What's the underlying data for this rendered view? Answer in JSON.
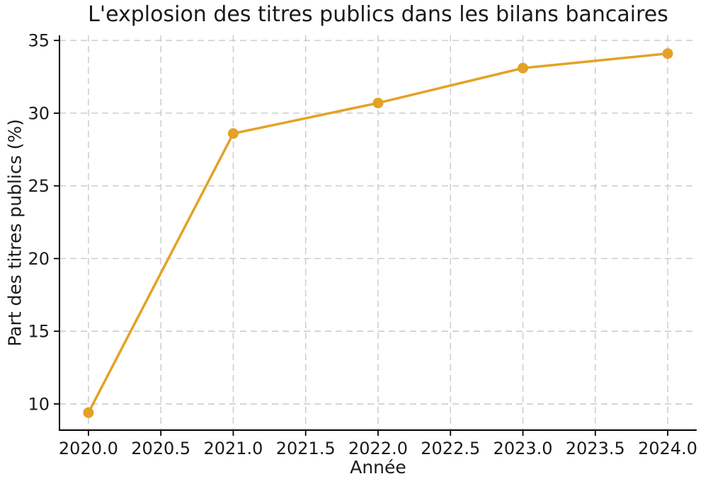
{
  "chart_data": {
    "type": "line",
    "title": "L'explosion des titres publics dans les bilans bancaires",
    "xlabel": "Année",
    "ylabel": "Part des titres publics (%)",
    "series": [
      {
        "name": "Part des titres publics",
        "x": [
          2020,
          2021,
          2022,
          2023,
          2024
        ],
        "values": [
          9.4,
          28.6,
          30.7,
          33.1,
          34.1
        ]
      }
    ],
    "xticks": [
      2020.0,
      2020.5,
      2021.0,
      2021.5,
      2022.0,
      2022.5,
      2023.0,
      2023.5,
      2024.0
    ],
    "xtick_labels": [
      "2020.0",
      "2020.5",
      "2021.0",
      "2021.5",
      "2022.0",
      "2022.5",
      "2023.0",
      "2023.5",
      "2024.0"
    ],
    "yticks": [
      10,
      15,
      20,
      25,
      30,
      35
    ],
    "ytick_labels": [
      "10",
      "15",
      "20",
      "25",
      "30",
      "35"
    ],
    "xlim": [
      2019.8,
      2024.2
    ],
    "ylim": [
      8.2,
      35.35
    ],
    "grid": true,
    "grid_style": "dashed",
    "legend": false,
    "marker": "o",
    "colors": {
      "line": "#E3A226",
      "marker": "#E3A226",
      "grid": "#c9c9c9",
      "axis": "#000000",
      "text": "#1a1a1a",
      "background": "#ffffff"
    }
  }
}
